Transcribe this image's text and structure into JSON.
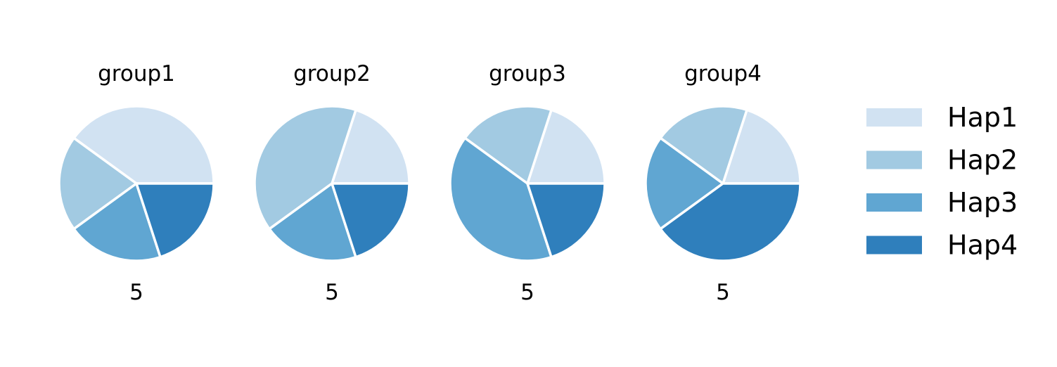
{
  "colors": {
    "Hap1": "#d1e2f2",
    "Hap2": "#a2cae2",
    "Hap3": "#60a6d2",
    "Hap4": "#2f7fbc",
    "wedge_edge": "#ffffff"
  },
  "legend": {
    "placement": "right",
    "entries": [
      "Hap1",
      "Hap2",
      "Hap3",
      "Hap4"
    ]
  },
  "chart_data": [
    {
      "type": "pie",
      "title": "group1",
      "count_label": "5",
      "labels": [
        "Hap1",
        "Hap2",
        "Hap3",
        "Hap4"
      ],
      "values": [
        2,
        1,
        1,
        1
      ]
    },
    {
      "type": "pie",
      "title": "group2",
      "count_label": "5",
      "labels": [
        "Hap1",
        "Hap2",
        "Hap3",
        "Hap4"
      ],
      "values": [
        1,
        2,
        1,
        1
      ]
    },
    {
      "type": "pie",
      "title": "group3",
      "count_label": "5",
      "labels": [
        "Hap1",
        "Hap2",
        "Hap3",
        "Hap4"
      ],
      "values": [
        1,
        1,
        2,
        1
      ]
    },
    {
      "type": "pie",
      "title": "group4",
      "count_label": "5",
      "labels": [
        "Hap1",
        "Hap2",
        "Hap3",
        "Hap4"
      ],
      "values": [
        1,
        1,
        1,
        2
      ]
    }
  ]
}
